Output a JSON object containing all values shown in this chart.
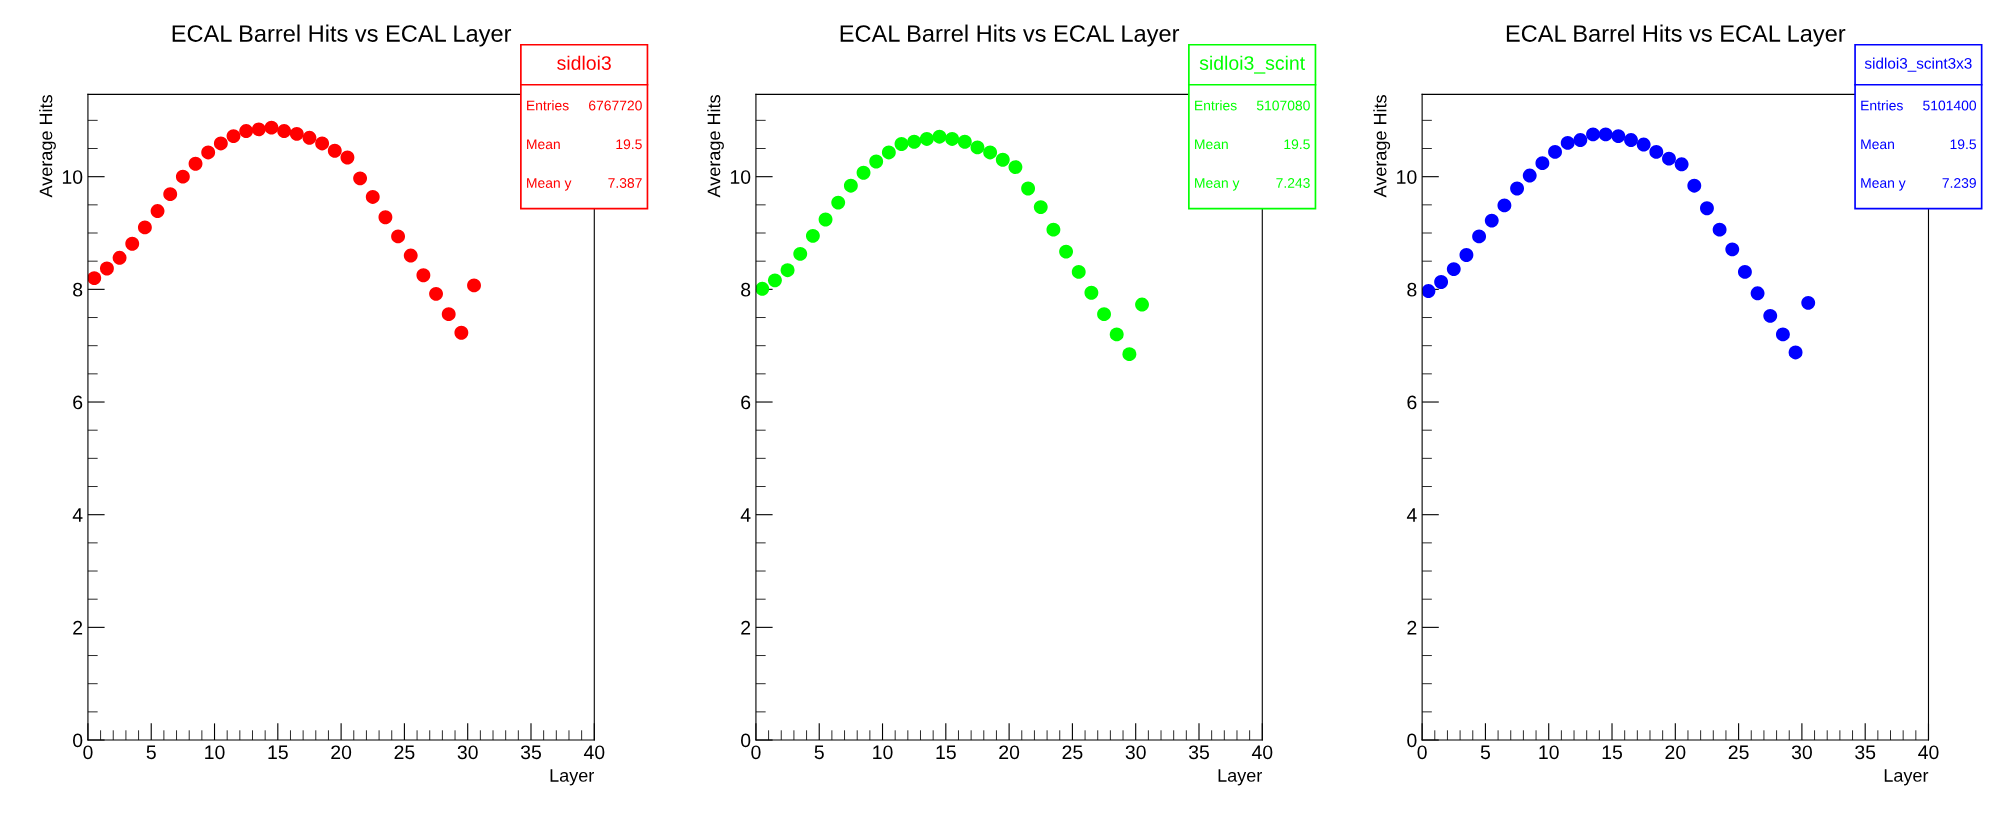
{
  "chart_data": [
    {
      "type": "scatter",
      "title": "ECAL Barrel Hits vs ECAL Layer",
      "xlabel": "Layer",
      "ylabel": "Average Hits",
      "x": [
        0.5,
        1.5,
        2.5,
        3.5,
        4.5,
        5.5,
        6.5,
        7.5,
        8.5,
        9.5,
        10.5,
        11.5,
        12.5,
        13.5,
        14.5,
        15.5,
        16.5,
        17.5,
        18.5,
        19.5,
        20.5,
        21.5,
        22.5,
        23.5,
        24.5,
        25.5,
        26.5,
        27.5,
        28.5,
        29.5,
        30.5
      ],
      "series": [
        {
          "name": "sidloi3",
          "color": "#ff0000",
          "values": [
            8.2,
            8.37,
            8.56,
            8.81,
            9.1,
            9.39,
            9.69,
            10.0,
            10.23,
            10.43,
            10.59,
            10.72,
            10.81,
            10.84,
            10.87,
            10.81,
            10.76,
            10.69,
            10.59,
            10.46,
            10.34,
            9.97,
            9.64,
            9.28,
            8.94,
            8.6,
            8.25,
            7.92,
            7.56,
            7.23,
            8.07
          ]
        }
      ],
      "annotations": [
        "Entries",
        "6767720",
        "Mean",
        "19.5",
        "Mean y",
        "7.387"
      ],
      "xlim": [
        0,
        40
      ],
      "xticks": [
        0,
        5,
        10,
        15,
        20,
        25,
        30,
        35,
        40
      ],
      "ylim": [
        0,
        11.46
      ],
      "yticks": [
        0,
        2,
        4,
        6,
        8,
        10
      ],
      "marker": "circle",
      "grid": false,
      "legend": "top right"
    },
    {
      "type": "scatter",
      "title": "ECAL Barrel Hits vs ECAL Layer",
      "xlabel": "Layer",
      "ylabel": "Average Hits",
      "x": [
        0.5,
        1.5,
        2.5,
        3.5,
        4.5,
        5.5,
        6.5,
        7.5,
        8.5,
        9.5,
        10.5,
        11.5,
        12.5,
        13.5,
        14.5,
        15.5,
        16.5,
        17.5,
        18.5,
        19.5,
        20.5,
        21.5,
        22.5,
        23.5,
        24.5,
        25.5,
        26.5,
        27.5,
        28.5,
        29.5,
        30.5
      ],
      "series": [
        {
          "name": "sidloi3_scint",
          "color": "#00ff00",
          "values": [
            8.01,
            8.16,
            8.34,
            8.63,
            8.95,
            9.24,
            9.54,
            9.84,
            10.07,
            10.27,
            10.43,
            10.58,
            10.62,
            10.67,
            10.71,
            10.67,
            10.62,
            10.52,
            10.43,
            10.3,
            10.17,
            9.79,
            9.46,
            9.06,
            8.67,
            8.31,
            7.94,
            7.56,
            7.2,
            6.85,
            7.73
          ]
        }
      ],
      "annotations": [
        "Entries",
        "5107080",
        "Mean",
        "19.5",
        "Mean y",
        "7.243"
      ],
      "xlim": [
        0,
        40
      ],
      "xticks": [
        0,
        5,
        10,
        15,
        20,
        25,
        30,
        35,
        40
      ],
      "ylim": [
        0,
        11.46
      ],
      "yticks": [
        0,
        2,
        4,
        6,
        8,
        10
      ],
      "marker": "circle",
      "grid": false,
      "legend": "top right"
    },
    {
      "type": "scatter",
      "title": "ECAL Barrel Hits vs ECAL Layer",
      "xlabel": "Layer",
      "ylabel": "Average Hits",
      "x": [
        0.5,
        1.5,
        2.5,
        3.5,
        4.5,
        5.5,
        6.5,
        7.5,
        8.5,
        9.5,
        10.5,
        11.5,
        12.5,
        13.5,
        14.5,
        15.5,
        16.5,
        17.5,
        18.5,
        19.5,
        20.5,
        21.5,
        22.5,
        23.5,
        24.5,
        25.5,
        26.5,
        27.5,
        28.5,
        29.5,
        30.5
      ],
      "series": [
        {
          "name": "sidloi3_scint3x3",
          "color": "#0000ff",
          "values": [
            7.97,
            8.13,
            8.36,
            8.61,
            8.94,
            9.22,
            9.49,
            9.79,
            10.02,
            10.24,
            10.44,
            10.6,
            10.65,
            10.75,
            10.75,
            10.72,
            10.65,
            10.57,
            10.44,
            10.32,
            10.22,
            9.84,
            9.44,
            9.06,
            8.71,
            8.31,
            7.93,
            7.53,
            7.2,
            6.88,
            7.76
          ]
        }
      ],
      "annotations": [
        "Entries",
        "5101400",
        "Mean",
        "19.5",
        "Mean y",
        "7.239"
      ],
      "xlim": [
        0,
        40
      ],
      "xticks": [
        0,
        5,
        10,
        15,
        20,
        25,
        30,
        35,
        40
      ],
      "ylim": [
        0,
        11.46
      ],
      "yticks": [
        0,
        2,
        4,
        6,
        8,
        10
      ],
      "marker": "circle",
      "grid": false,
      "legend": "top right"
    }
  ]
}
